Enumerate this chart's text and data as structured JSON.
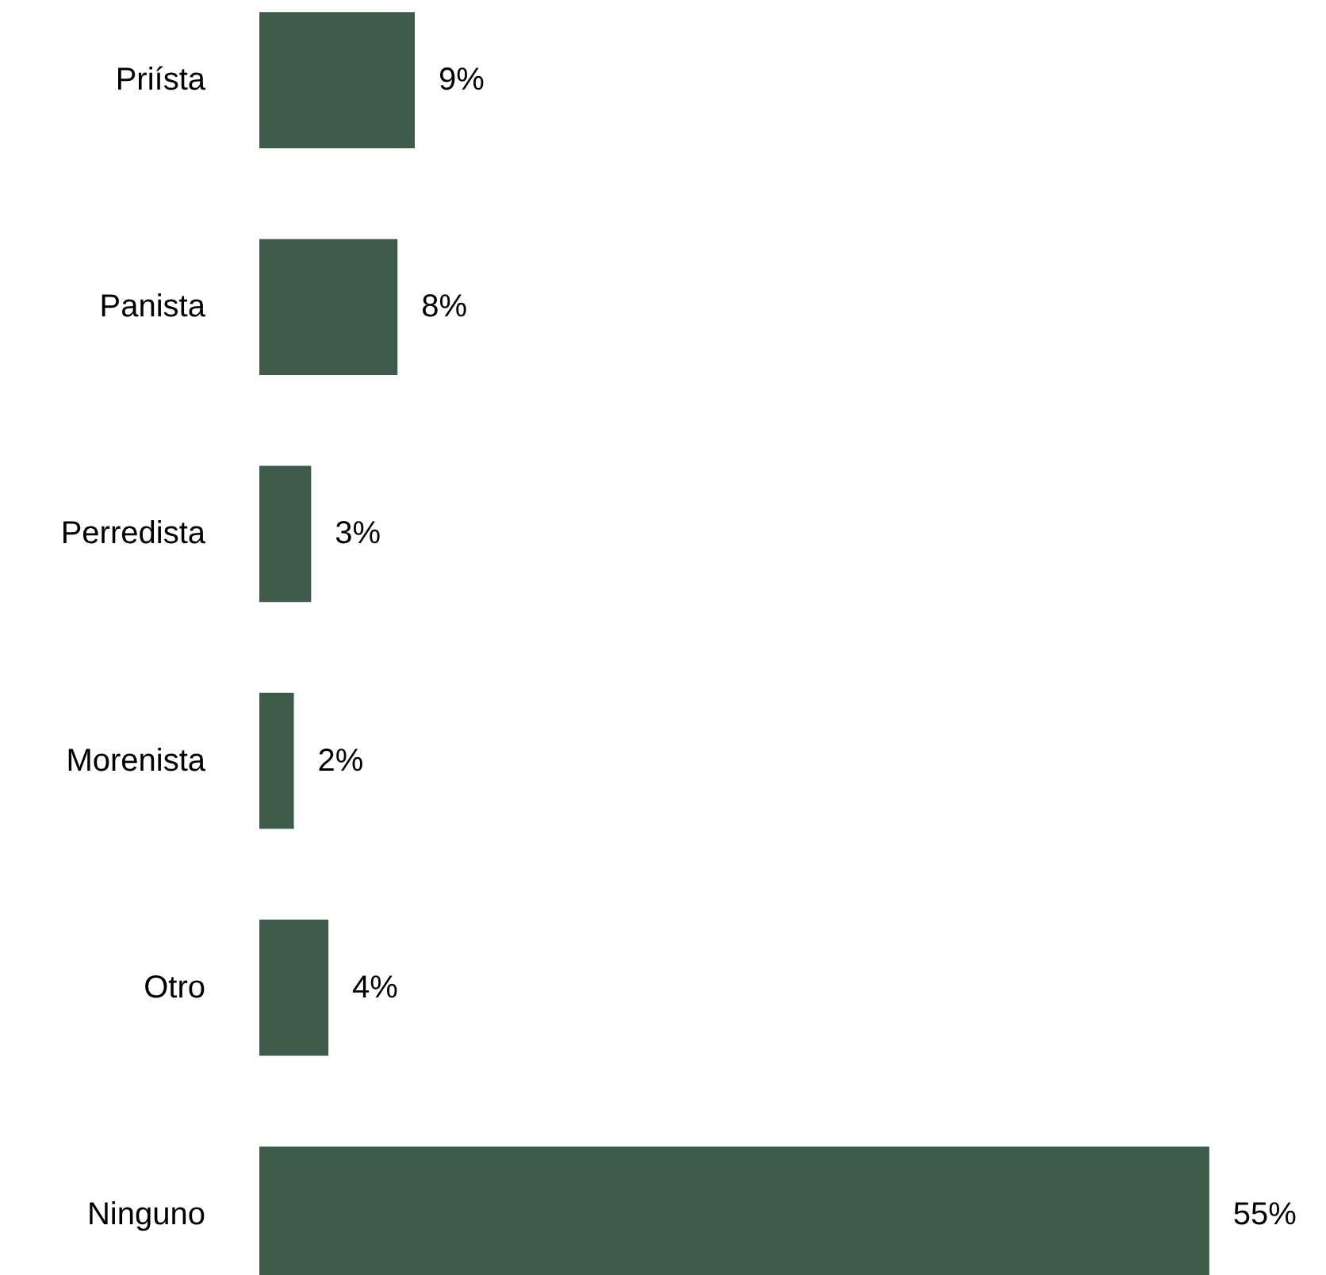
{
  "chart_data": {
    "type": "bar",
    "orientation": "horizontal",
    "tick_labels": "y",
    "data_labels": true,
    "grid": false,
    "categories": [
      "Priísta",
      "Panista",
      "Perredista",
      "Morenista",
      "Otro",
      "Ninguno"
    ],
    "values": [
      9,
      8,
      3,
      2,
      4,
      55
    ],
    "value_labels": [
      "9%",
      "8%",
      "3%",
      "2%",
      "4%",
      "55%"
    ],
    "color": "#3d5a4b"
  }
}
